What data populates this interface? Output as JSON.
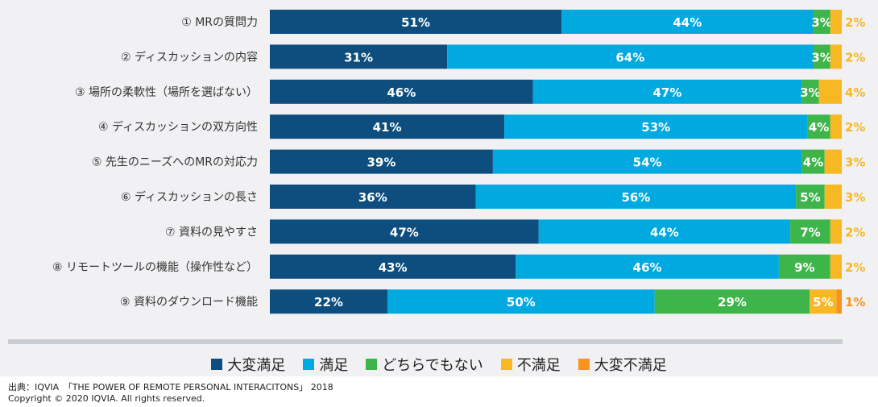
{
  "chart_data": {
    "type": "bar",
    "orientation": "horizontal",
    "stacked": true,
    "normalized": true,
    "categories": [
      "① MRの質問力",
      "② ディスカッションの内容",
      "③ 場所の柔軟性（場所を選ばない）",
      "④ ディスカッションの双方向性",
      "⑤ 先生のニーズへのMRの対応力",
      "⑥ ディスカッションの長さ",
      "⑦ 資料の見やすさ",
      "⑧ リモートツールの機能（操作性など）",
      "⑨ 資料のダウンロード機能"
    ],
    "series": [
      {
        "name": "大変満足",
        "color": "#0d4e7f",
        "values": [
          51,
          31,
          46,
          41,
          39,
          36,
          47,
          43,
          22
        ]
      },
      {
        "name": "満足",
        "color": "#00a9e0",
        "values": [
          44,
          64,
          47,
          53,
          54,
          56,
          44,
          46,
          50
        ]
      },
      {
        "name": "どちらでもない",
        "color": "#3db54a",
        "values": [
          3,
          3,
          3,
          4,
          4,
          5,
          7,
          9,
          29
        ]
      },
      {
        "name": "不満足",
        "color": "#f7b823",
        "values": [
          2,
          2,
          4,
          2,
          3,
          3,
          2,
          2,
          5
        ]
      },
      {
        "name": "大変不満足",
        "color": "#f7941d",
        "values": [
          0,
          0,
          0,
          0,
          0,
          0,
          0,
          0,
          1
        ]
      }
    ],
    "value_suffix": "%",
    "outside_label_series": "不満足",
    "outside_label_values": [
      2,
      2,
      4,
      2,
      3,
      3,
      2,
      2,
      1
    ],
    "outside_label_color": "#f7b823",
    "outside_label_color_last": "#f7941d",
    "legend_position": "bottom",
    "grid": false
  },
  "legend": {
    "items": [
      {
        "label": "大変満足",
        "color": "#0d4e7f"
      },
      {
        "label": "満足",
        "color": "#00a9e0"
      },
      {
        "label": "どちらでもない",
        "color": "#3db54a"
      },
      {
        "label": "不満足",
        "color": "#f7b823"
      },
      {
        "label": "大変不満足",
        "color": "#f7941d"
      }
    ]
  },
  "footer": {
    "source": "出典：IQVIA　「THE POWER OF REMOTE PERSONAL INTERACITONS」 2018",
    "copyright": "Copyright © 2020 IQVIA. All rights reserved."
  }
}
